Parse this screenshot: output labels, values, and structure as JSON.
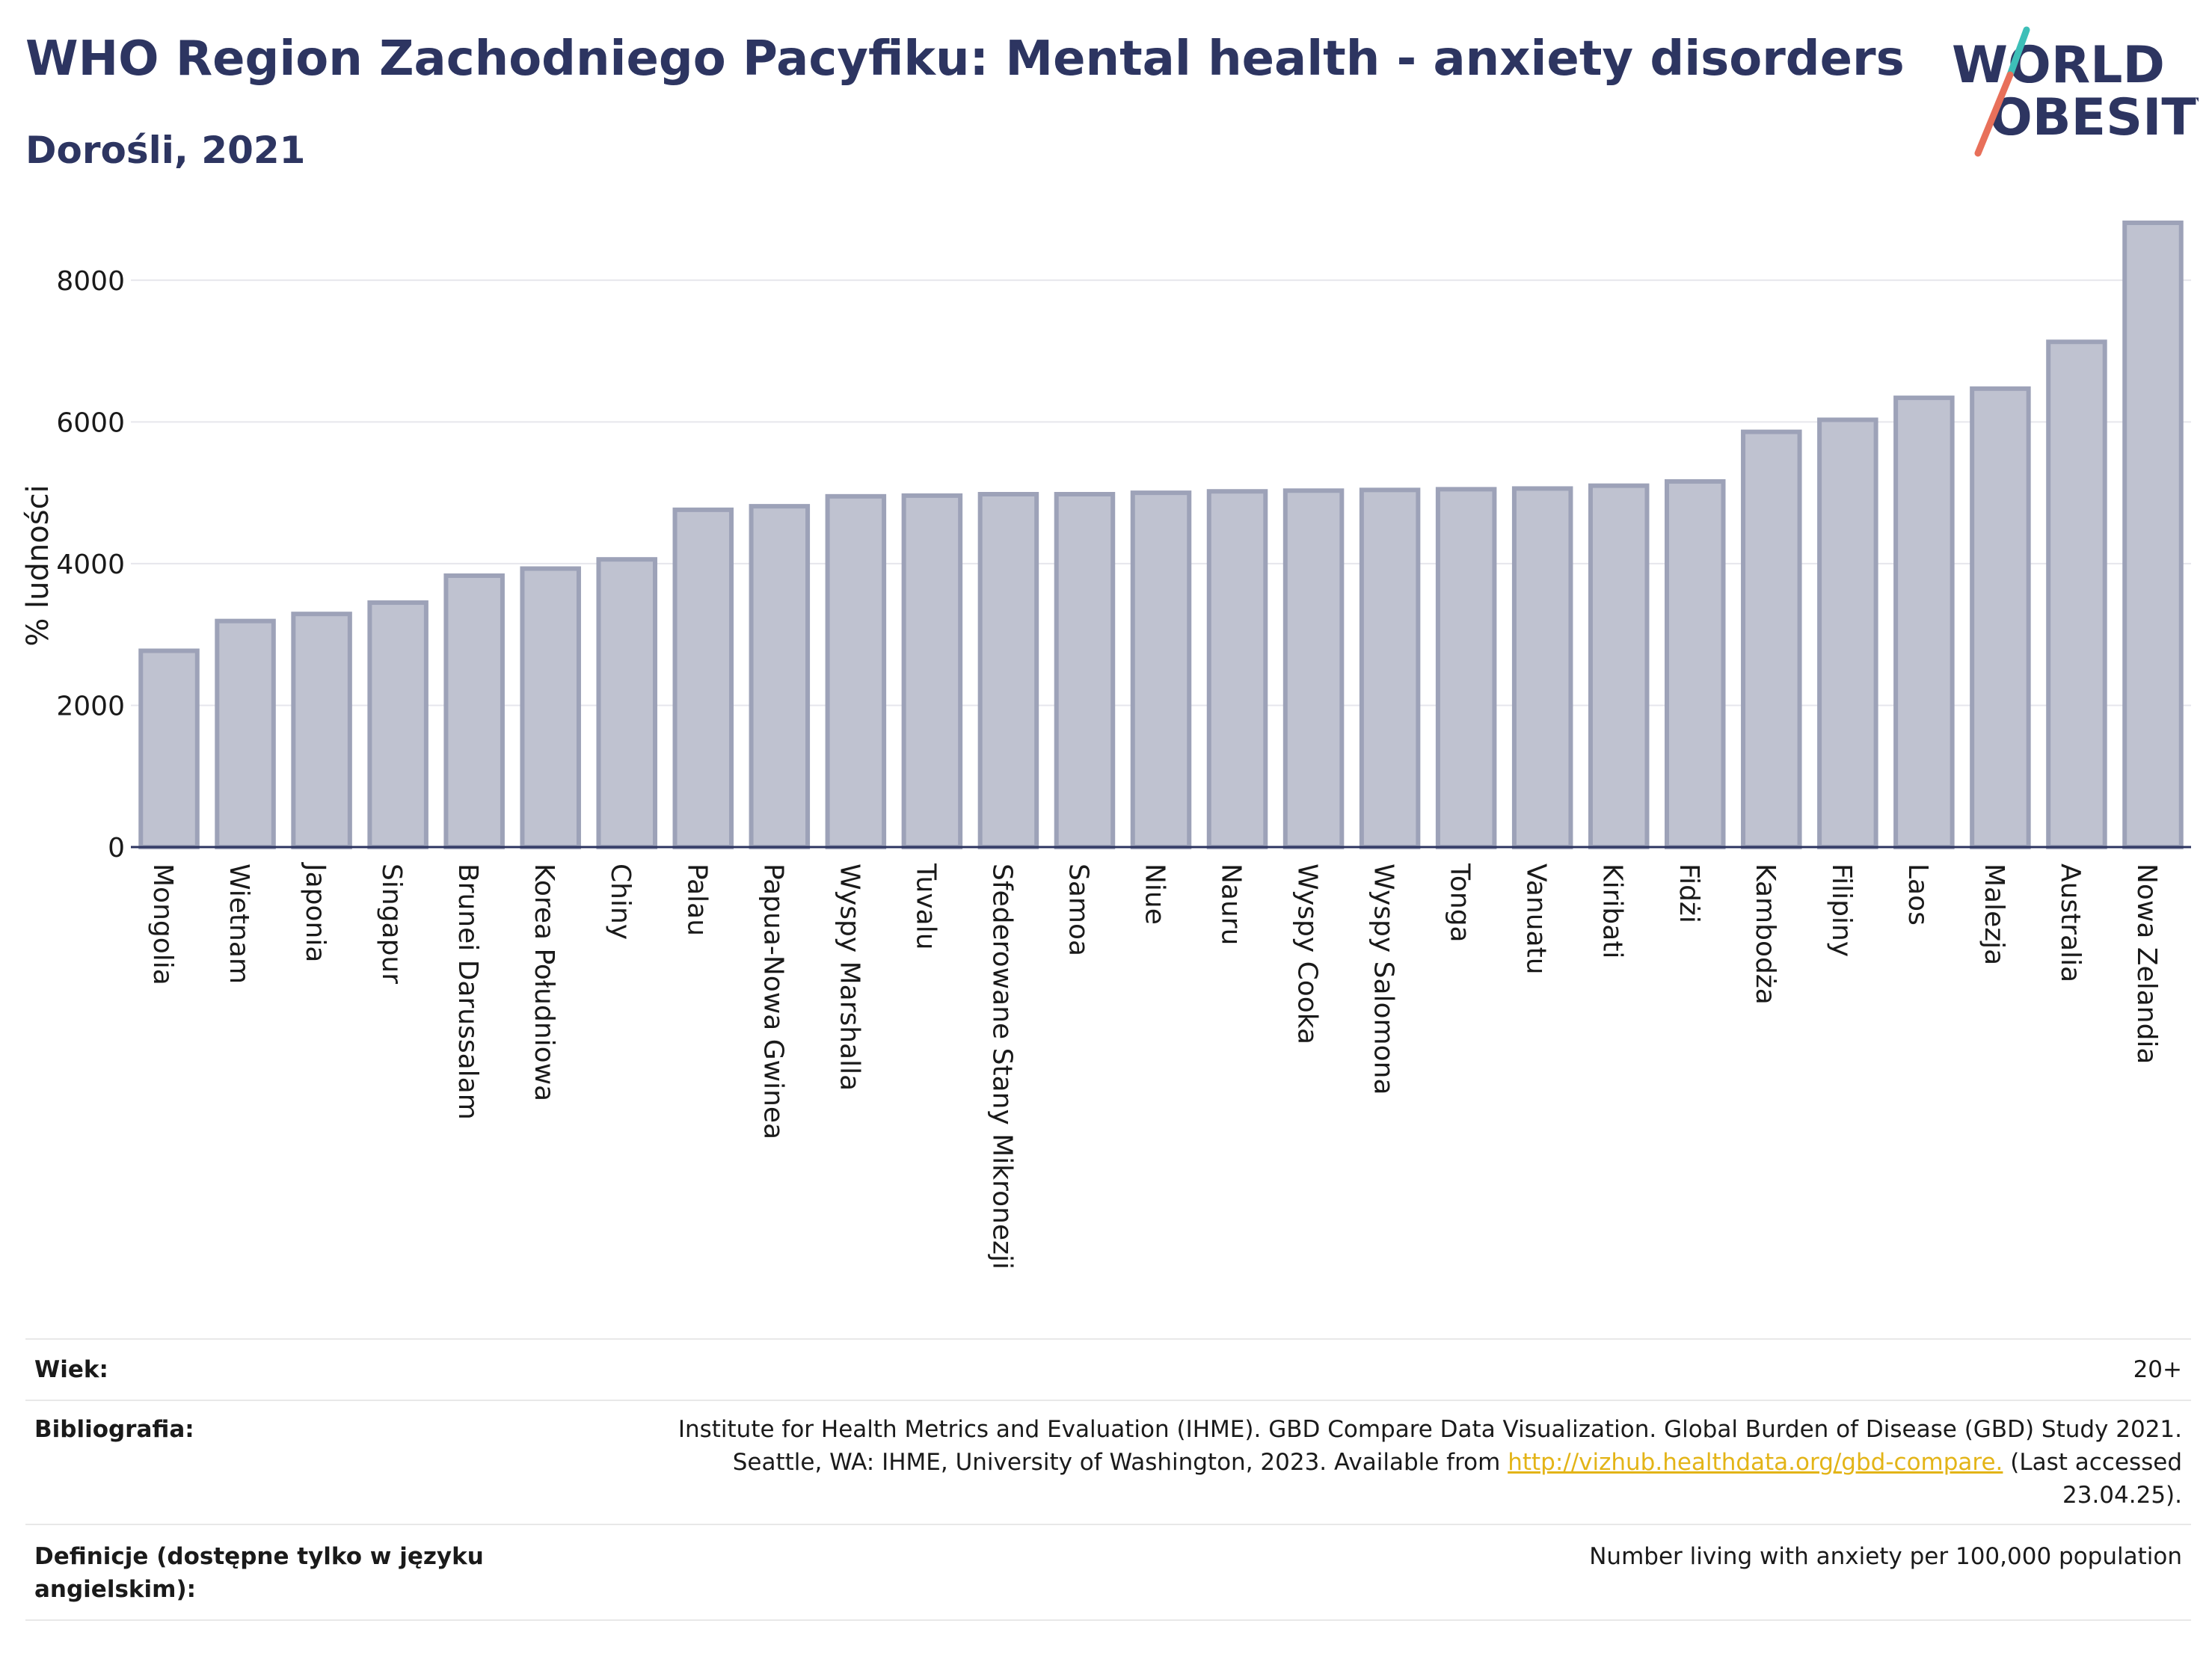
{
  "header": {
    "title": "WHO Region Zachodniego Pacyfiku: Mental health - anxiety disorders",
    "subtitle": "Dorośli, 2021"
  },
  "logo": {
    "line1": "WORLD",
    "line2": "OBESITY",
    "colors": {
      "text": "#2d3561",
      "slash_teal": "#3dbfb8",
      "slash_coral": "#e8705a"
    }
  },
  "colors": {
    "bar_fill": "#bfc2d0",
    "bar_stroke": "#9da2b8",
    "text": "#2d3561",
    "link": "#e3b417"
  },
  "chart_data": {
    "type": "bar",
    "title": "",
    "xlabel": "",
    "ylabel": "% ludności",
    "ylim": [
      0,
      9000
    ],
    "yticks": [
      0,
      2000,
      4000,
      6000,
      8000
    ],
    "grid": true,
    "categories": [
      "Mongolia",
      "Wietnam",
      "Japonia",
      "Singapur",
      "Brunei Darussalam",
      "Korea Południowa",
      "Chiny",
      "Palau",
      "Papua-Nowa Gwinea",
      "Wyspy Marshalla",
      "Tuvalu",
      "Sfederowane Stany Mikronezji",
      "Samoa",
      "Niue",
      "Nauru",
      "Wyspy Cooka",
      "Wyspy Salomona",
      "Tonga",
      "Vanuatu",
      "Kiribati",
      "Fidżi",
      "Kambodża",
      "Filipiny",
      "Laos",
      "Malezja",
      "Australia",
      "Nowa Zelandia"
    ],
    "values": [
      2770,
      3190,
      3290,
      3450,
      3830,
      3930,
      4060,
      4760,
      4810,
      4950,
      4960,
      4980,
      4980,
      5000,
      5020,
      5030,
      5040,
      5050,
      5060,
      5100,
      5160,
      5860,
      6030,
      6340,
      6470,
      7130,
      8810
    ]
  },
  "meta": {
    "age_label": "Wiek:",
    "age_value": "20+",
    "bib_label": "Bibliografia:",
    "bib_line1": "Institute for Health Metrics and Evaluation (IHME). GBD Compare Data Visualization. Global Burden of Disease (GBD) Study 2021.",
    "bib_line2_pre": "Seattle, WA: IHME, University of Washington, 2023. Available from ",
    "bib_link": "http://vizhub.healthdata.org/gbd-compare.",
    "bib_line2_post": " (Last accessed",
    "bib_line3": "23.04.25).",
    "def_label_line1": "Definicje (dostępne tylko w języku",
    "def_label_line2": "angielskim):",
    "def_value": "Number living with anxiety per 100,000 population"
  }
}
